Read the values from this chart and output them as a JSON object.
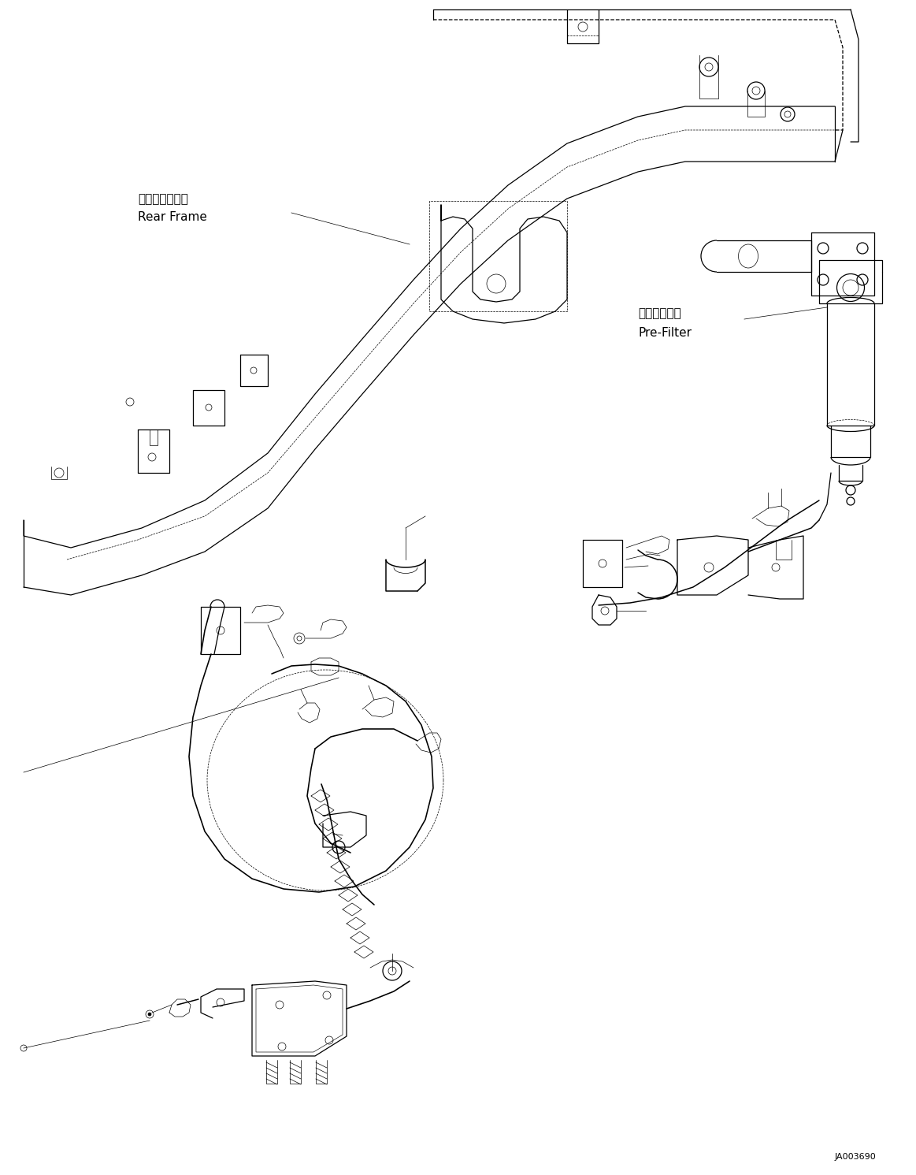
{
  "background_color": "#ffffff",
  "line_color": "#000000",
  "label_rear_frame_jp": "リヤーフレーム",
  "label_rear_frame_en": "Rear Frame",
  "label_pre_filter_jp": "プリフィルタ",
  "label_pre_filter_en": "Pre-Filter",
  "label_part_number": "JA003690",
  "font_size_labels": 10,
  "font_size_part_number": 8,
  "line_width": 0.9,
  "thin_line": 0.5,
  "thick_line": 1.4
}
